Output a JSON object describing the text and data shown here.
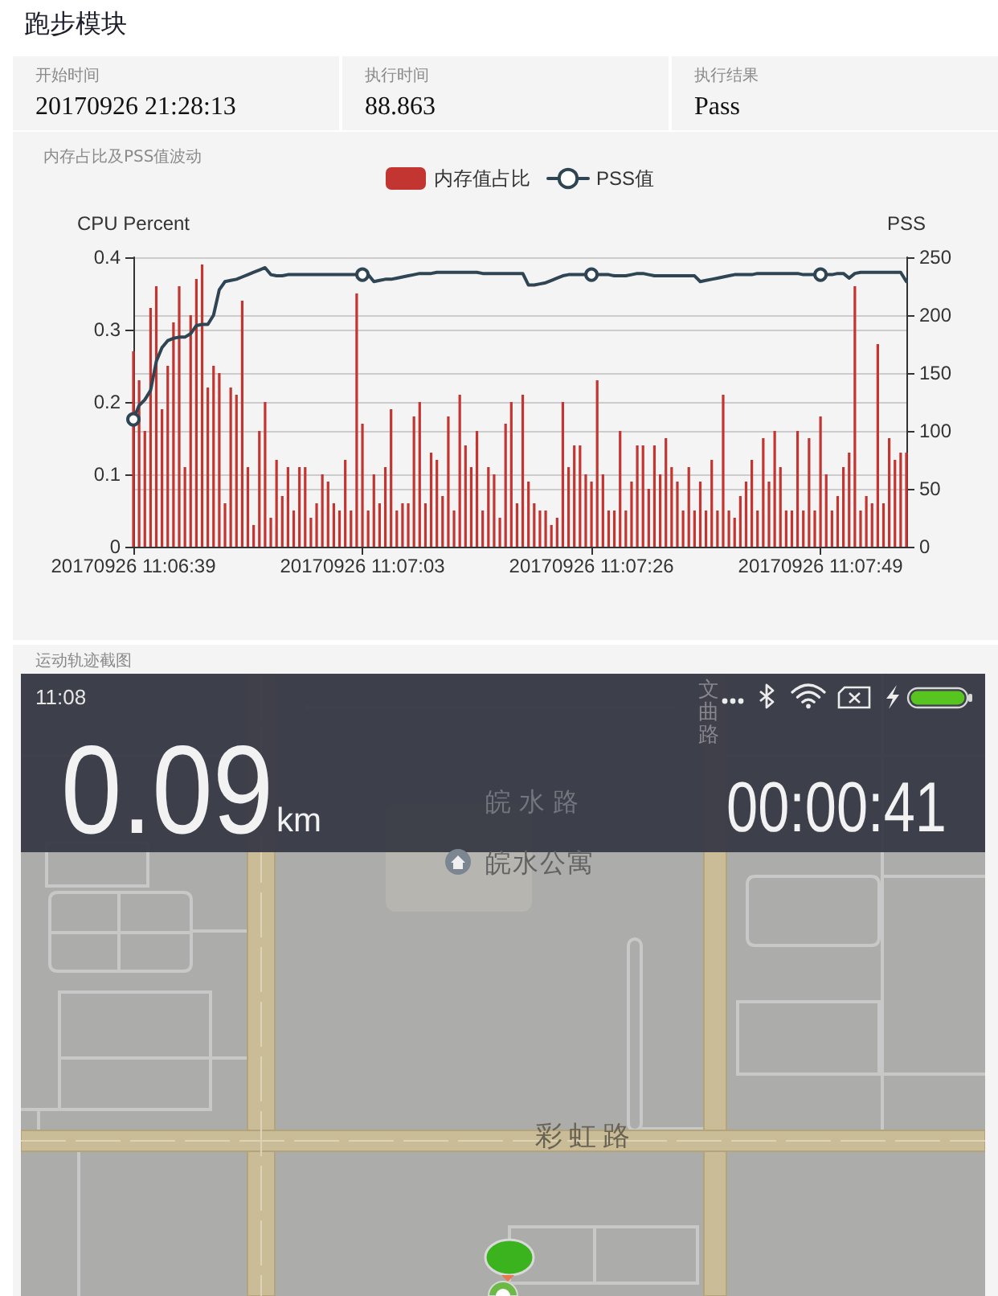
{
  "chart_data": [
    {
      "type": "other",
      "title": "跑步模块",
      "annotations": [
        "开始时间",
        "20170926 21:28:13",
        "执行时间",
        "88.863",
        "执行结果",
        "Pass"
      ]
    },
    {
      "type": "bar",
      "title": "内存占比及PSS值波动",
      "ylabel": "CPU Percent",
      "y2label": "PSS",
      "categories": [
        "20170926 11:06:39",
        null,
        null,
        null,
        null,
        null,
        null,
        null,
        null,
        null,
        null,
        null,
        null,
        null,
        null,
        null,
        null,
        null,
        null,
        null,
        null,
        null,
        null,
        null,
        null,
        null,
        null,
        null,
        null,
        null,
        null,
        null,
        null,
        null,
        null,
        null,
        null,
        null,
        null,
        null,
        "20170926 11:07:03",
        null,
        null,
        null,
        null,
        null,
        null,
        null,
        null,
        null,
        null,
        null,
        null,
        null,
        null,
        null,
        null,
        null,
        null,
        null,
        null,
        null,
        null,
        null,
        null,
        null,
        null,
        null,
        null,
        null,
        null,
        null,
        null,
        null,
        null,
        null,
        null,
        null,
        null,
        null,
        "20170926 11:07:26",
        null,
        null,
        null,
        null,
        null,
        null,
        null,
        null,
        null,
        null,
        null,
        null,
        null,
        null,
        null,
        null,
        null,
        null,
        null,
        null,
        null,
        null,
        null,
        null,
        null,
        null,
        null,
        null,
        null,
        null,
        null,
        null,
        null,
        null,
        null,
        null,
        null,
        null,
        null,
        "20170926 11:07:49",
        null,
        null,
        null,
        null,
        null,
        null,
        null,
        null,
        null,
        null,
        null,
        null,
        null,
        null,
        null
      ],
      "series": [
        {
          "name": "内存值占比",
          "type": "bar",
          "color": "#c23531",
          "values": [
            0.27,
            0.23,
            0.16,
            0.33,
            0.36,
            0.19,
            0.25,
            0.31,
            0.36,
            0.11,
            0.32,
            0.37,
            0.39,
            0.22,
            0.25,
            0.24,
            0.06,
            0.22,
            0.21,
            0.34,
            0.11,
            0.03,
            0.16,
            0.2,
            0.04,
            0.12,
            0.07,
            0.11,
            0.05,
            0.11,
            0.11,
            0.04,
            0.06,
            0.1,
            0.09,
            0.06,
            0.05,
            0.12,
            0.05,
            0.35,
            0.17,
            0.05,
            0.1,
            0.06,
            0.11,
            0.19,
            0.05,
            0.06,
            0.06,
            0.18,
            0.2,
            0.06,
            0.13,
            0.12,
            0.07,
            0.18,
            0.05,
            0.21,
            0.14,
            0.11,
            0.16,
            0.05,
            0.11,
            0.1,
            0.04,
            0.17,
            0.2,
            0.06,
            0.21,
            0.09,
            0.06,
            0.05,
            0.05,
            0.03,
            0.04,
            0.2,
            0.11,
            0.14,
            0.14,
            0.1,
            0.09,
            0.23,
            0.1,
            0.05,
            0.05,
            0.16,
            0.05,
            0.09,
            0.14,
            0.14,
            0.08,
            0.14,
            0.1,
            0.15,
            0.11,
            0.09,
            0.05,
            0.11,
            0.05,
            0.09,
            0.05,
            0.12,
            0.05,
            0.21,
            0.05,
            0.04,
            0.07,
            0.09,
            0.12,
            0.05,
            0.15,
            0.09,
            0.16,
            0.11,
            0.05,
            0.05,
            0.16,
            0.05,
            0.15,
            0.05,
            0.18,
            0.1,
            0.05,
            0.07,
            0.11,
            0.13,
            0.36,
            0.05,
            0.07,
            0.06,
            0.28,
            0.06,
            0.15,
            0.12,
            0.13,
            0.13
          ]
        },
        {
          "name": "PSS值",
          "type": "line",
          "axis": "y2",
          "color": "#2f4554",
          "values": [
            110,
            122,
            127,
            135,
            160,
            172,
            178,
            180,
            181,
            181,
            184,
            191,
            192,
            192,
            200,
            222,
            229,
            230,
            231,
            233,
            235,
            237,
            239,
            241,
            235,
            234,
            234,
            235,
            235,
            235,
            235,
            235,
            235,
            235,
            235,
            235,
            235,
            235,
            235,
            235,
            235,
            235,
            229,
            230,
            231,
            231,
            232,
            233,
            234,
            235,
            236,
            236,
            236,
            237,
            237,
            237,
            237,
            237,
            237,
            237,
            237,
            236,
            236,
            236,
            236,
            236,
            236,
            236,
            236,
            226,
            226,
            227,
            228,
            230,
            232,
            234,
            235,
            235,
            235,
            235,
            235,
            235,
            235,
            235,
            234,
            234,
            234,
            235,
            236,
            236,
            235,
            234,
            234,
            234,
            234,
            234,
            234,
            234,
            234,
            229,
            230,
            231,
            232,
            233,
            234,
            235,
            235,
            235,
            235,
            236,
            236,
            236,
            236,
            236,
            236,
            236,
            236,
            235,
            235,
            235,
            235,
            235,
            235,
            236,
            236,
            232,
            236,
            237,
            237,
            237,
            237,
            237,
            237,
            237,
            237,
            229
          ]
        }
      ],
      "ylim": [
        0,
        0.4
      ],
      "yticks": [
        0,
        0.1,
        0.2,
        0.3,
        0.4
      ],
      "y2lim": [
        0,
        250
      ],
      "y2ticks": [
        0,
        50,
        100,
        150,
        200,
        250
      ],
      "grid": "y",
      "legend": "top"
    },
    {
      "type": "other",
      "title": "运动轨迹截图",
      "annotations": [
        "11:08",
        "0.09",
        "km",
        "00:00:41",
        "皖水路",
        "皖水公寓",
        "彩虹路",
        "文曲路"
      ]
    }
  ]
}
